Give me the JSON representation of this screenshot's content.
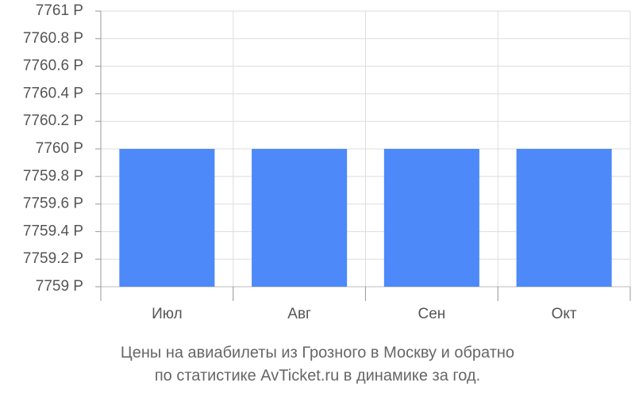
{
  "chart_data": {
    "type": "bar",
    "title": "Цены на авиабилеты из Грозного в Москву и обратно",
    "subtitle": "по статистике AvTicket.ru в динамике за год.",
    "categories": [
      "Июл",
      "Авг",
      "Сен",
      "Окт"
    ],
    "values": [
      7760,
      7760,
      7760,
      7760
    ],
    "color": "#4d89f9",
    "ylim": [
      7759,
      7761
    ],
    "yticks": [
      {
        "value": 7759,
        "label": "7759 Р"
      },
      {
        "value": 7759.2,
        "label": "7759.2 Р"
      },
      {
        "value": 7759.4,
        "label": "7759.4 Р"
      },
      {
        "value": 7759.6,
        "label": "7759.6 Р"
      },
      {
        "value": 7759.8,
        "label": "7759.8 Р"
      },
      {
        "value": 7760,
        "label": "7760 Р"
      },
      {
        "value": 7760.2,
        "label": "7760.2 Р"
      },
      {
        "value": 7760.4,
        "label": "7760.4 Р"
      },
      {
        "value": 7760.6,
        "label": "7760.6 Р"
      },
      {
        "value": 7760.8,
        "label": "7760.8 Р"
      },
      {
        "value": 7761,
        "label": "7761 Р"
      }
    ],
    "grid": true
  }
}
